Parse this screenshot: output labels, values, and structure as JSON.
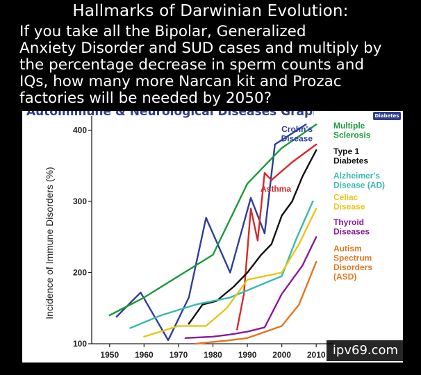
{
  "meme": {
    "title": "Hallmarks of Darwinian Evolution:",
    "caption_lines": [
      "If you take all the Bipolar, Generalized",
      "Anxiety Disorder and SUD cases and multiply by",
      "the percentage decrease in sperm counts and",
      "IQs, how many more Narcan kit and Prozac",
      "factories will be needed by 2050?"
    ],
    "watermark": "ipv69.com",
    "badge_text": "Diabetes"
  },
  "chart_data": {
    "type": "line",
    "title": "Autoimmune & Neurological Diseases Graph",
    "xlabel": "",
    "ylabel": "Incidence of Immune Disorders (%)",
    "xlim": [
      1945,
      2015
    ],
    "ylim": [
      100,
      420
    ],
    "xticks": [
      1950,
      1960,
      1970,
      1980,
      1990,
      2000,
      2010
    ],
    "yticks": [
      100,
      200,
      300,
      400
    ],
    "series": [
      {
        "name": "Crohn's Disease",
        "label_lines": [
          "Crohn's",
          "Disease"
        ],
        "color": "#2e3e9a",
        "x": [
          1952,
          1959,
          1967,
          1973,
          1978,
          1985,
          1991,
          1995,
          1998,
          2007
        ],
        "y": [
          138,
          172,
          105,
          165,
          277,
          200,
          305,
          255,
          380,
          408
        ]
      },
      {
        "name": "Multiple Sclerosis",
        "label_lines": [
          "Multiple",
          "Sclerosis"
        ],
        "color": "#1a9a3a",
        "x": [
          1950,
          1960,
          1970,
          1980,
          1990,
          2000,
          2010
        ],
        "y": [
          140,
          165,
          195,
          225,
          325,
          375,
          408
        ]
      },
      {
        "name": "Asthma",
        "label_lines": [
          "Asthma"
        ],
        "color": "#d42a2a",
        "x": [
          1987,
          1989,
          1991,
          1993,
          1995,
          1997,
          2003,
          2010
        ],
        "y": [
          120,
          170,
          290,
          245,
          340,
          330,
          355,
          380
        ]
      },
      {
        "name": "Type 1 Diabetes",
        "label_lines": [
          "Type 1",
          "Diabetes"
        ],
        "color": "#111111",
        "x": [
          1973,
          1977,
          1981,
          1986,
          1990,
          1994,
          1997,
          2000,
          2003,
          2006,
          2010
        ],
        "y": [
          128,
          155,
          160,
          180,
          200,
          225,
          240,
          280,
          300,
          335,
          372
        ]
      },
      {
        "name": "Alzheimer's Disease (AD)",
        "label_lines": [
          "Alzheimer's",
          "Disease (AD)"
        ],
        "color": "#3ab7b0",
        "x": [
          1956,
          1965,
          1975,
          1985,
          1990,
          2000,
          2004,
          2009
        ],
        "y": [
          122,
          140,
          155,
          165,
          175,
          195,
          245,
          300
        ]
      },
      {
        "name": "Celiac Disease",
        "label_lines": [
          "Celiac",
          "Disease"
        ],
        "color": "#e7c619",
        "x": [
          1960,
          1970,
          1978,
          1984,
          1990,
          2000,
          2005,
          2010
        ],
        "y": [
          110,
          125,
          125,
          150,
          190,
          200,
          240,
          290
        ]
      },
      {
        "name": "Thyroid Diseases",
        "label_lines": [
          "Thyroid",
          "Diseases"
        ],
        "color": "#8a1a9a",
        "x": [
          1972,
          1980,
          1985,
          1990,
          1995,
          2000,
          2006,
          2010
        ],
        "y": [
          108,
          110,
          113,
          117,
          123,
          170,
          210,
          250
        ]
      },
      {
        "name": "Autism Spectrum Disorders (ASD)",
        "label_lines": [
          "Autism",
          "Spectrum",
          "Disorders",
          "(ASD)"
        ],
        "color": "#e0771e",
        "x": [
          1975,
          1985,
          1990,
          2000,
          2005,
          2010
        ],
        "y": [
          100,
          105,
          108,
          125,
          155,
          215
        ]
      }
    ]
  }
}
